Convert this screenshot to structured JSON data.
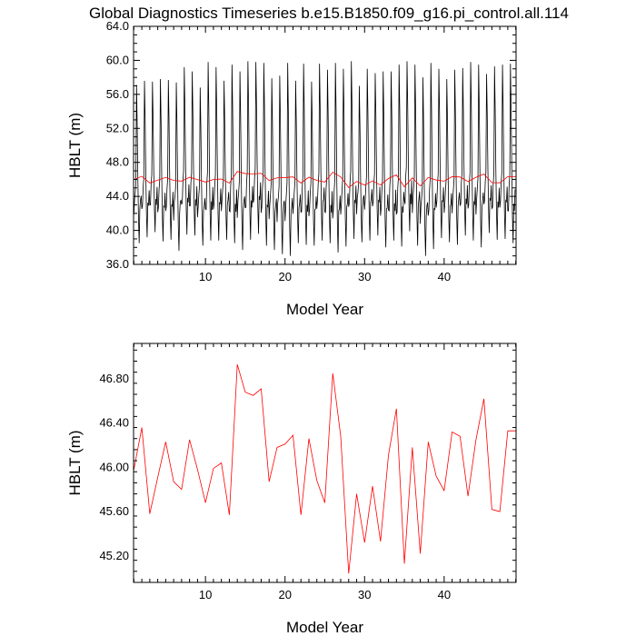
{
  "figure": {
    "title": "Global Diagnostics Timeseries b.e15.B1850.f09_g16.pi_control.all.114"
  },
  "chart_data": [
    {
      "type": "line",
      "xlabel": "Model Year",
      "ylabel": "HBLT (m)",
      "xlim": [
        0.96,
        49.04
      ],
      "ylim": [
        36.0,
        64.0
      ],
      "xticks": [
        "10",
        "20",
        "30",
        "40"
      ],
      "yticks": [
        "36.0",
        "40.0",
        "44.0",
        "48.0",
        "52.0",
        "56.0",
        "60.0",
        "64.0"
      ],
      "series": [
        {
          "color": "#000000",
          "style": "monthly",
          "annual_peaks": [
            57.1,
            57.6,
            57.5,
            57.8,
            57.7,
            57.4,
            59.2,
            58.7,
            56.8,
            59.8,
            59.2,
            57.6,
            59.5,
            58.7,
            59.9,
            59.8,
            59.7,
            57.9,
            58.2,
            59.7,
            57.6,
            59.6,
            57.5,
            59.6,
            58.9,
            59.7,
            59.0,
            59.9,
            57.0,
            59.0,
            58.5,
            58.7,
            58.7,
            59.5,
            59.9,
            59.5,
            58.0,
            59.7,
            59.0,
            57.8,
            58.9,
            59.1,
            59.8,
            59.5,
            58.4,
            59.3,
            59.5,
            59.6
          ],
          "annual_troughs": [
            38.5,
            39.2,
            39.8,
            38.7,
            38.9,
            37.6,
            39.5,
            39.4,
            38.2,
            38.8,
            38.8,
            38.9,
            38.5,
            37.7,
            38.9,
            39.6,
            38.2,
            37.7,
            37.2,
            37.0,
            38.5,
            38.3,
            38.2,
            38.8,
            38.5,
            37.4,
            38.1,
            39.0,
            38.6,
            38.8,
            39.4,
            38.0,
            38.8,
            38.1,
            39.9,
            38.2,
            37.0,
            37.8,
            39.1,
            38.6,
            38.3,
            39.4,
            38.8,
            38.0,
            39.7,
            38.9,
            39.0,
            38.5
          ],
          "annual_shoulders": [
            43.6,
            42.9,
            43.0,
            42.7,
            42.8,
            43.4,
            43.3,
            42.9,
            42.8,
            42.4,
            43.1,
            43.6,
            42.2,
            43.5,
            42.7,
            43.6,
            42.8,
            43.0,
            43.2,
            42.8,
            43.2,
            42.2,
            42.5,
            43.6,
            42.1,
            42.5,
            43.1,
            43.2,
            43.8,
            43.7,
            43.3,
            42.6,
            42.3,
            42.1,
            43.1,
            43.8,
            42.9,
            42.4,
            43.4,
            43.0,
            43.7,
            43.1,
            43.0,
            43.6,
            43.5,
            42.7,
            43.4,
            42.3
          ],
          "x_start": 1.0,
          "x_end": 49.0
        },
        {
          "color": "#ff0000",
          "style": "annual",
          "x": [
            1,
            2,
            3,
            4,
            5,
            6,
            7,
            8,
            9,
            10,
            11,
            12,
            13,
            14,
            15,
            16,
            17,
            18,
            19,
            20,
            21,
            22,
            23,
            24,
            25,
            26,
            27,
            28,
            29,
            30,
            31,
            32,
            33,
            34,
            35,
            36,
            37,
            38,
            39,
            40,
            41,
            42,
            43,
            44,
            45,
            46,
            47,
            48,
            49
          ],
          "values": [
            45.98,
            46.36,
            45.58,
            45.91,
            46.23,
            45.87,
            45.8,
            46.25,
            45.98,
            45.68,
            45.99,
            46.04,
            45.57,
            46.93,
            46.68,
            46.65,
            46.71,
            45.87,
            46.18,
            46.21,
            46.29,
            45.57,
            46.26,
            45.88,
            45.68,
            46.85,
            46.28,
            45.04,
            45.76,
            45.32,
            45.83,
            45.33,
            46.11,
            46.53,
            45.13,
            46.18,
            45.22,
            46.23,
            45.92,
            45.79,
            46.32,
            46.28,
            45.74,
            46.25,
            46.62,
            45.62,
            45.6,
            46.33,
            46.33
          ]
        }
      ]
    },
    {
      "type": "line",
      "xlabel": "Model Year",
      "ylabel": "HBLT (m)",
      "xlim": [
        0.96,
        49.04
      ],
      "ylim": [
        44.96,
        47.12
      ],
      "xticks": [
        "10",
        "20",
        "30",
        "40"
      ],
      "yticks": [
        "45.20",
        "45.60",
        "46.00",
        "46.40",
        "46.80"
      ],
      "series": [
        {
          "color": "#ff0000",
          "x": [
            1,
            2,
            3,
            4,
            5,
            6,
            7,
            8,
            9,
            10,
            11,
            12,
            13,
            14,
            15,
            16,
            17,
            18,
            19,
            20,
            21,
            22,
            23,
            24,
            25,
            26,
            27,
            28,
            29,
            30,
            31,
            32,
            33,
            34,
            35,
            36,
            37,
            38,
            39,
            40,
            41,
            42,
            43,
            44,
            45,
            46,
            47,
            48,
            49
          ],
          "values": [
            45.98,
            46.36,
            45.58,
            45.91,
            46.23,
            45.87,
            45.8,
            46.25,
            45.98,
            45.68,
            45.99,
            46.04,
            45.57,
            46.93,
            46.68,
            46.65,
            46.71,
            45.87,
            46.18,
            46.21,
            46.29,
            45.57,
            46.26,
            45.88,
            45.68,
            46.85,
            46.28,
            45.04,
            45.76,
            45.32,
            45.83,
            45.33,
            46.11,
            46.53,
            45.13,
            46.18,
            45.22,
            46.23,
            45.92,
            45.79,
            46.32,
            46.28,
            45.74,
            46.25,
            46.62,
            45.62,
            45.6,
            46.33,
            46.33
          ]
        }
      ]
    }
  ]
}
